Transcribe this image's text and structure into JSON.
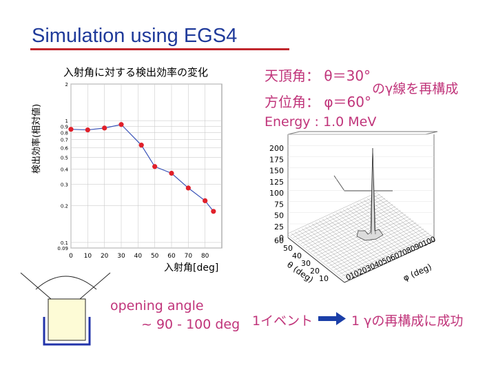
{
  "slide": {
    "title": "Simulation using EGS4",
    "colors": {
      "title": "#1f3a9a",
      "title_underline": "#c0262c",
      "accent_text": "#c0347a",
      "arrow": "#1b3fa8",
      "marker": "#e0202a",
      "line": "#3a53b8"
    }
  },
  "efficiency_chart": {
    "title": "入射角に対する検出効率の変化",
    "ylabel": "検出効率(相対値)",
    "xlabel": "入射角[deg]"
  },
  "chart_data": [
    {
      "type": "line",
      "title": "入射角に対する検出効率の変化",
      "xlabel": "入射角[deg]",
      "ylabel": "検出効率(相対値)",
      "yscale": "log",
      "xlim": [
        0,
        90
      ],
      "ylim": [
        0.09,
        2
      ],
      "x_ticks": [
        "0",
        "10",
        "20",
        "30",
        "40",
        "50",
        "60",
        "70",
        "80"
      ],
      "y_ticks": [
        "2",
        "1",
        "0.9",
        "0.8",
        "0.7",
        "0.6",
        "0.5",
        "0.4",
        "0.3",
        "0.2",
        "0.1",
        "0.09"
      ],
      "grid": true,
      "x": [
        0,
        10,
        20,
        30,
        42,
        50,
        60,
        70,
        80,
        85
      ],
      "values": [
        0.85,
        0.84,
        0.87,
        0.93,
        0.63,
        0.42,
        0.37,
        0.28,
        0.22,
        0.18
      ]
    },
    {
      "type": "surface",
      "x_label": "θ (deg)",
      "y_label": "φ (deg)",
      "z_ticks": [
        "200",
        "175",
        "150",
        "125",
        "100",
        "75",
        "50",
        "25",
        "0"
      ],
      "theta_ticks": [
        "60",
        "50",
        "40",
        "30",
        "20",
        "10",
        "0"
      ],
      "phi_ticks": [
        "0",
        "10",
        "20",
        "30",
        "40",
        "50",
        "60",
        "70",
        "80",
        "90",
        "100"
      ],
      "peak": {
        "theta": 30,
        "phi": 60,
        "height": 190
      }
    }
  ],
  "sim_params": {
    "zenith": "天頂角： θ＝30°",
    "azimuth": "方位角： φ＝60°",
    "suffix": "のγ線を再構成",
    "energy": "Energy : 1.0 MeV"
  },
  "surface_plot": {
    "z_ticks": [
      "200",
      "175",
      "150",
      "125",
      "100",
      "75",
      "50",
      "25",
      "0"
    ],
    "theta_ticks": [
      "60",
      "50",
      "40",
      "30",
      "20",
      "10"
    ],
    "theta_label": "θ (deg)",
    "phi_tick_text": "0102030405060708090100",
    "phi_label": "φ (deg)"
  },
  "diagram": {
    "opening_angle_line1": "opening angle",
    "opening_angle_line2": "~ 90 - 100 deg"
  },
  "result": {
    "left": "1イベント",
    "right": "1 γの再構成に成功"
  }
}
